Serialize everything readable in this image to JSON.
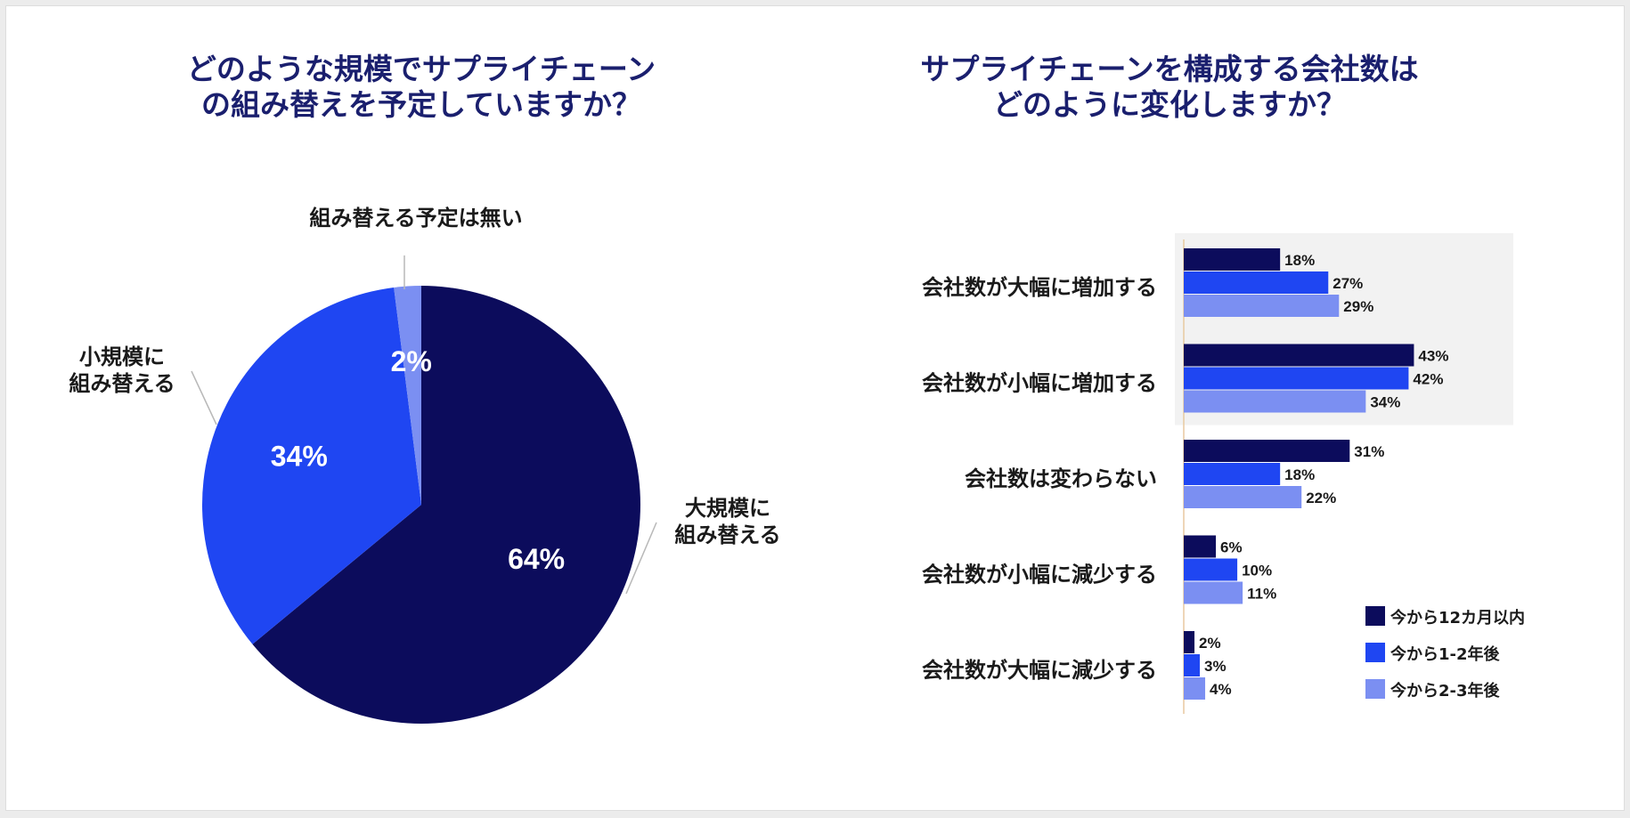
{
  "chart_data": [
    {
      "type": "pie",
      "title": [
        "どのような規模でサプライチェーン",
        "の組み替えを予定していますか？"
      ],
      "slices": [
        {
          "label": "大規模に\n組み替える",
          "value": 64,
          "value_label": "64%",
          "color": "#0c0c5c"
        },
        {
          "label": "小規模に\n組み替える",
          "value": 34,
          "value_label": "34%",
          "color": "#1f46f2"
        },
        {
          "label": "組み替える予定は無い",
          "value": 2,
          "value_label": "2%",
          "color": "#7b8ff2"
        }
      ]
    },
    {
      "type": "bar",
      "orientation": "horizontal",
      "title": [
        "サプライチェーンを構成する会社数は",
        "どのように変化しますか？"
      ],
      "categories": [
        "会社数が大幅に増加する",
        "会社数が小幅に増加する",
        "会社数は変わらない",
        "会社数が小幅に減少する",
        "会社数が大幅に減少する"
      ],
      "highlighted_categories": [
        0,
        1
      ],
      "series": [
        {
          "name": "今から12カ月以内",
          "color": "#0c0c5c",
          "values": [
            18,
            43,
            31,
            6,
            2
          ]
        },
        {
          "name": "今から1-2年後",
          "color": "#1f46f2",
          "values": [
            27,
            42,
            18,
            10,
            3
          ]
        },
        {
          "name": "今から2-3年後",
          "color": "#7b8ff2",
          "values": [
            29,
            34,
            22,
            11,
            4
          ]
        }
      ],
      "value_suffix": "%",
      "xlim": [
        0,
        60
      ],
      "legend_position": "bottom-right"
    }
  ]
}
